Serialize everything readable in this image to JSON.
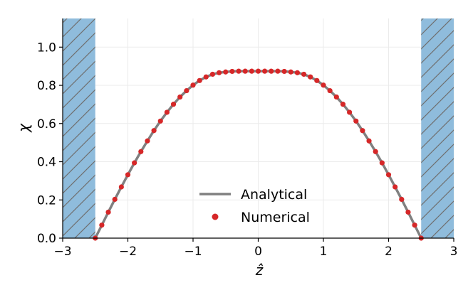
{
  "chart_data": {
    "type": "line",
    "xlabel": "ẑ",
    "ylabel": "χ",
    "xlim": [
      -3,
      3
    ],
    "ylim": [
      0,
      1.15
    ],
    "xticks": [
      -3,
      -2,
      -1,
      0,
      1,
      2,
      3
    ],
    "xtick_labels": [
      "−3",
      "−2",
      "−1",
      "0",
      "1",
      "2",
      "3"
    ],
    "yticks": [
      0.0,
      0.2,
      0.4,
      0.6,
      0.8,
      1.0
    ],
    "ytick_labels": [
      "0.0",
      "0.2",
      "0.4",
      "0.6",
      "0.8",
      "1.0"
    ],
    "grid": true,
    "legend_position": "bottom-center",
    "shaded_regions": [
      {
        "x_range": [
          -3,
          -2.5
        ],
        "color": "#8fbcdc",
        "hatch": "diagonal"
      },
      {
        "x_range": [
          2.5,
          3
        ],
        "color": "#8fbcdc",
        "hatch": "diagonal"
      }
    ],
    "series": [
      {
        "name": "Analytical",
        "style": "line",
        "color": "#808080",
        "x": [
          -2.5,
          -2.4,
          -2.3,
          -2.2,
          -2.1,
          -2.0,
          -1.9,
          -1.8,
          -1.7,
          -1.6,
          -1.5,
          -1.4,
          -1.3,
          -1.2,
          -1.1,
          -1.0,
          -0.9,
          -0.8,
          -0.7,
          -0.6,
          -0.5,
          -0.4,
          -0.3,
          -0.2,
          -0.1,
          0.0,
          0.1,
          0.2,
          0.3,
          0.4,
          0.5,
          0.6,
          0.7,
          0.8,
          0.9,
          1.0,
          1.1,
          1.2,
          1.3,
          1.4,
          1.5,
          1.6,
          1.7,
          1.8,
          1.9,
          2.0,
          2.1,
          2.2,
          2.3,
          2.4,
          2.5
        ],
        "y": [
          0.0,
          0.068,
          0.136,
          0.203,
          0.268,
          0.332,
          0.394,
          0.453,
          0.509,
          0.563,
          0.613,
          0.659,
          0.701,
          0.739,
          0.772,
          0.801,
          0.825,
          0.844,
          0.858,
          0.866,
          0.87,
          0.873,
          0.874,
          0.874,
          0.874,
          0.874,
          0.874,
          0.874,
          0.874,
          0.873,
          0.87,
          0.866,
          0.858,
          0.844,
          0.825,
          0.801,
          0.772,
          0.739,
          0.701,
          0.659,
          0.613,
          0.563,
          0.509,
          0.453,
          0.394,
          0.332,
          0.268,
          0.203,
          0.136,
          0.068,
          0.0
        ]
      },
      {
        "name": "Numerical",
        "style": "scatter",
        "color": "#d62728",
        "x": [
          -2.5,
          -2.4,
          -2.3,
          -2.2,
          -2.1,
          -2.0,
          -1.9,
          -1.8,
          -1.7,
          -1.6,
          -1.5,
          -1.4,
          -1.3,
          -1.2,
          -1.1,
          -1.0,
          -0.9,
          -0.8,
          -0.7,
          -0.6,
          -0.5,
          -0.4,
          -0.3,
          -0.2,
          -0.1,
          0.0,
          0.1,
          0.2,
          0.3,
          0.4,
          0.5,
          0.6,
          0.7,
          0.8,
          0.9,
          1.0,
          1.1,
          1.2,
          1.3,
          1.4,
          1.5,
          1.6,
          1.7,
          1.8,
          1.9,
          2.0,
          2.1,
          2.2,
          2.3,
          2.4,
          2.5
        ],
        "y": [
          0.0,
          0.068,
          0.136,
          0.203,
          0.268,
          0.332,
          0.394,
          0.453,
          0.509,
          0.563,
          0.613,
          0.659,
          0.701,
          0.739,
          0.772,
          0.801,
          0.825,
          0.844,
          0.858,
          0.866,
          0.87,
          0.873,
          0.874,
          0.874,
          0.874,
          0.874,
          0.874,
          0.874,
          0.874,
          0.873,
          0.87,
          0.866,
          0.858,
          0.844,
          0.825,
          0.801,
          0.772,
          0.739,
          0.701,
          0.659,
          0.613,
          0.563,
          0.509,
          0.453,
          0.394,
          0.332,
          0.268,
          0.203,
          0.136,
          0.068,
          0.0
        ]
      }
    ]
  }
}
